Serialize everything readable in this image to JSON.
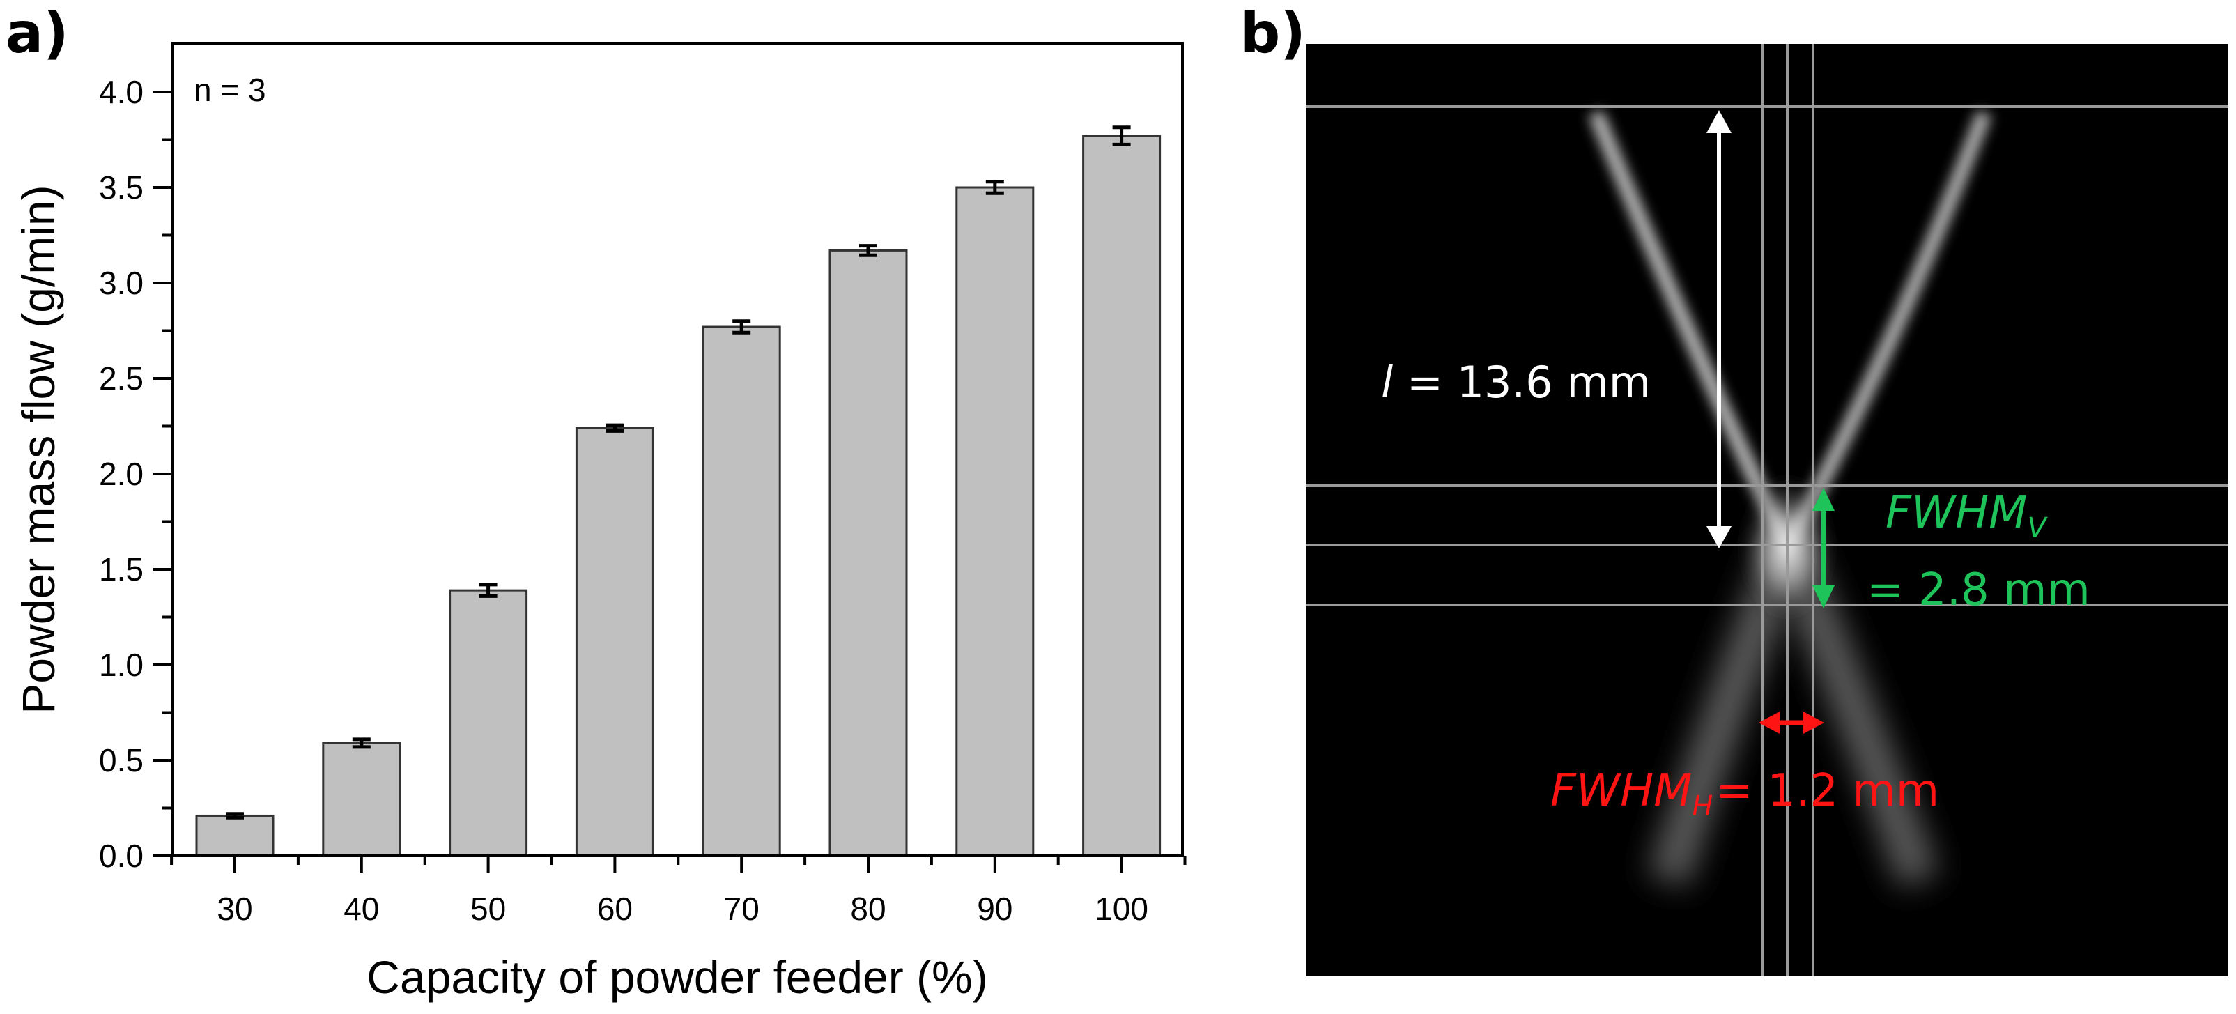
{
  "panel_a": {
    "label": "a)",
    "annotation": "n = 3",
    "xlabel": "Capacity of powder feeder (%)",
    "ylabel": "Powder mass flow (g/min)",
    "yticks": [
      "0.0",
      "0.5",
      "1.0",
      "1.5",
      "2.0",
      "2.5",
      "3.0",
      "3.5",
      "4.0"
    ],
    "xticks": [
      "30",
      "40",
      "50",
      "60",
      "70",
      "80",
      "90",
      "100"
    ]
  },
  "panel_b": {
    "label": "b)",
    "length_italic": "l",
    "length_rest": " = 13.6 mm",
    "fwhm_v_main": "FWHM",
    "fwhm_v_sub": "V",
    "fwhm_v_value": "= 2.8 mm",
    "fwhm_h_main": "FWHM",
    "fwhm_h_sub": "H",
    "fwhm_h_value": "= 1.2 mm",
    "colors": {
      "length": "#ffffff",
      "fwhm_v": "#1ec45a",
      "fwhm_h": "#ff1414",
      "guide_lines": "#9a9a9a"
    }
  },
  "chart_data": [
    {
      "type": "bar",
      "title": "",
      "categories": [
        "30",
        "40",
        "50",
        "60",
        "70",
        "80",
        "90",
        "100"
      ],
      "series": [
        {
          "name": "Powder mass flow",
          "values": [
            0.21,
            0.59,
            1.39,
            2.24,
            2.77,
            3.17,
            3.5,
            3.77
          ],
          "errors": [
            0.01,
            0.02,
            0.03,
            0.015,
            0.03,
            0.025,
            0.03,
            0.045
          ]
        }
      ],
      "xlabel": "Capacity of powder feeder (%)",
      "ylabel": "Powder mass flow (g/min)",
      "ylim": [
        0,
        4.26
      ],
      "yticks": [
        0.0,
        0.5,
        1.0,
        1.5,
        2.0,
        2.5,
        3.0,
        3.5,
        4.0
      ],
      "annotations": [
        "n = 3"
      ],
      "grid": false,
      "bar_color": "#c0c0c0",
      "legend": null
    },
    {
      "type": "image",
      "title": "",
      "description": "Grayscale image of two converging powder streams forming an X with focal spot; guide lines mark dimensions",
      "annotations": [
        "l = 13.6 mm",
        "FWHM_V = 2.8 mm",
        "FWHM_H = 1.2 mm"
      ],
      "measurements": {
        "stream_length_mm": 13.6,
        "fwhm_vertical_mm": 2.8,
        "fwhm_horizontal_mm": 1.2
      }
    }
  ]
}
